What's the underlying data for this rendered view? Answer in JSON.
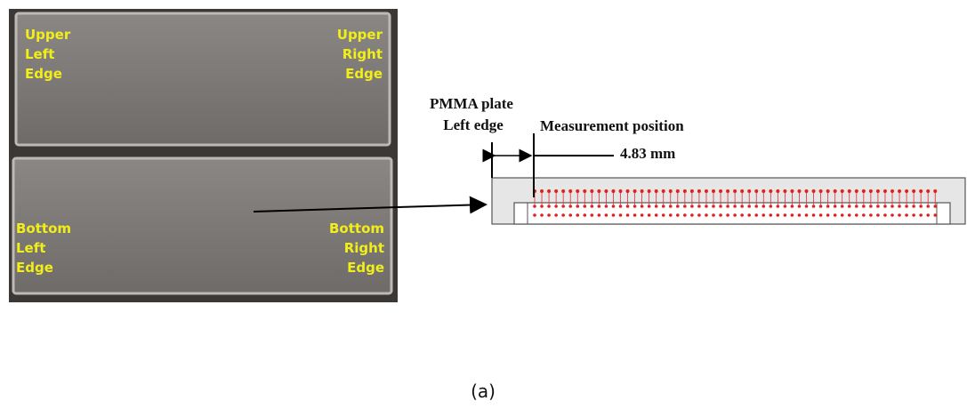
{
  "photo": {
    "labels": [
      {
        "lines": [
          "Upper",
          "Left",
          "Edge"
        ]
      },
      {
        "lines": [
          "Upper",
          "Right",
          "Edge"
        ]
      },
      {
        "lines": [
          "Bottom",
          "Left",
          "Edge"
        ]
      },
      {
        "lines": [
          "Bottom",
          "Right",
          "Edge"
        ]
      }
    ]
  },
  "diagram": {
    "plate_label": [
      "PMMA plate",
      "Left edge"
    ],
    "position_label": "Measurement position",
    "distance": "4.83 mm"
  },
  "caption": "(a)"
}
